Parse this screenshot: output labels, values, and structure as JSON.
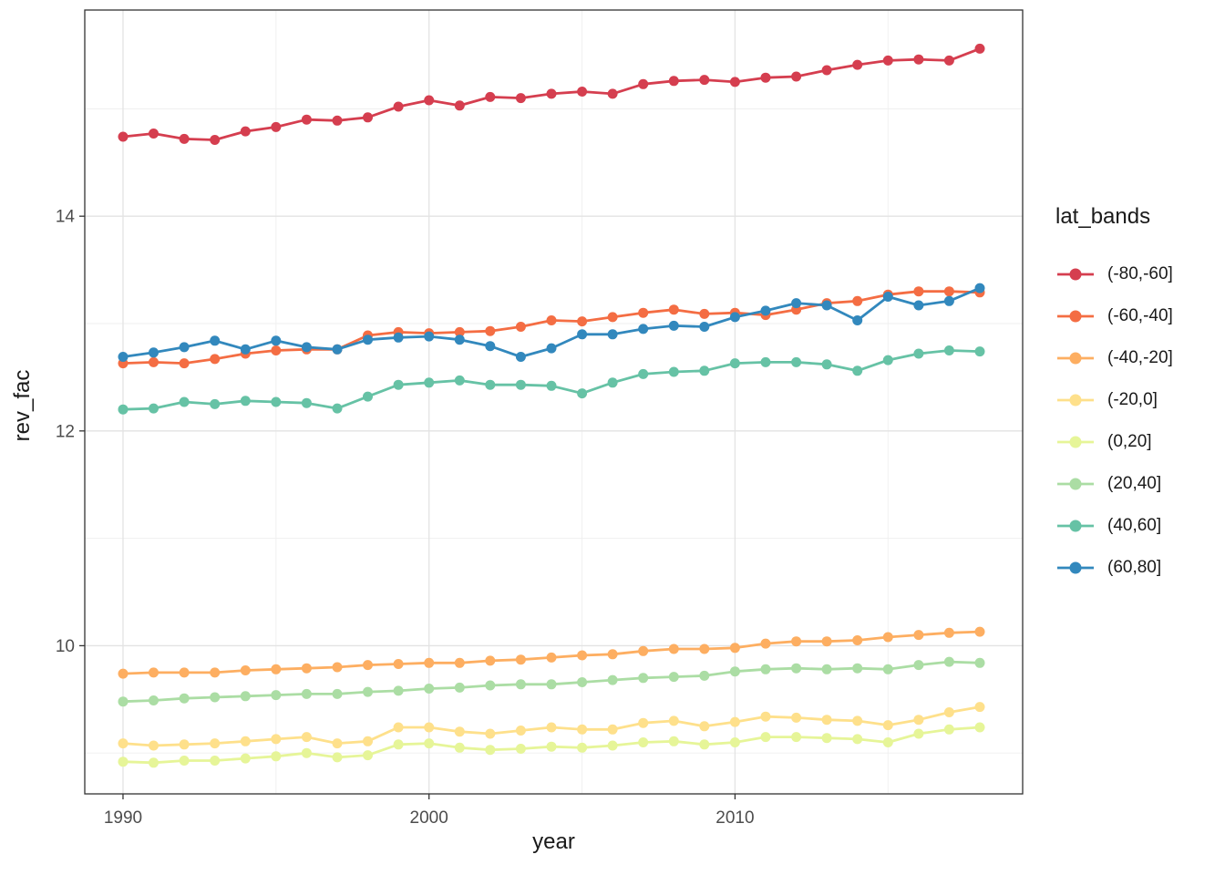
{
  "figure": {
    "background": "#ffffff"
  },
  "chart_data": {
    "type": "line",
    "title": "",
    "xlabel": "year",
    "ylabel": "rev_fac",
    "legend_title": "lat_bands",
    "legend_position": "right",
    "grid": true,
    "marker": "circle",
    "x": [
      1990,
      1991,
      1992,
      1993,
      1994,
      1995,
      1996,
      1997,
      1998,
      1999,
      2000,
      2001,
      2002,
      2003,
      2004,
      2005,
      2006,
      2007,
      2008,
      2009,
      2010,
      2011,
      2012,
      2013,
      2014,
      2015,
      2016,
      2017,
      2018
    ],
    "x_ticks": [
      1990,
      2000,
      2010
    ],
    "x_minor_ticks": [
      1995,
      2005,
      2015
    ],
    "y_ticks": [
      10,
      12,
      14
    ],
    "y_minor_ticks": [
      9,
      11,
      13,
      15
    ],
    "x_domain": [
      1988.75,
      2019.4
    ],
    "y_domain": [
      8.62,
      15.92
    ],
    "series": [
      {
        "name": "(-80,-60]",
        "color": "#d53e4f",
        "values": [
          14.74,
          14.77,
          14.72,
          14.71,
          14.79,
          14.83,
          14.9,
          14.89,
          14.92,
          15.02,
          15.08,
          15.03,
          15.11,
          15.1,
          15.14,
          15.16,
          15.14,
          15.23,
          15.26,
          15.27,
          15.25,
          15.29,
          15.3,
          15.36,
          15.41,
          15.45,
          15.46,
          15.45,
          15.56
        ]
      },
      {
        "name": "(-60,-40]",
        "color": "#f46d43",
        "values": [
          12.63,
          12.64,
          12.63,
          12.67,
          12.72,
          12.75,
          12.76,
          12.76,
          12.89,
          12.92,
          12.91,
          12.92,
          12.93,
          12.97,
          13.03,
          13.02,
          13.06,
          13.1,
          13.13,
          13.09,
          13.1,
          13.08,
          13.13,
          13.19,
          13.21,
          13.27,
          13.3,
          13.3,
          13.29
        ]
      },
      {
        "name": "(-40,-20]",
        "color": "#fdae61",
        "values": [
          9.74,
          9.75,
          9.75,
          9.75,
          9.77,
          9.78,
          9.79,
          9.8,
          9.82,
          9.83,
          9.84,
          9.84,
          9.86,
          9.87,
          9.89,
          9.91,
          9.92,
          9.95,
          9.97,
          9.97,
          9.98,
          10.02,
          10.04,
          10.04,
          10.05,
          10.08,
          10.1,
          10.12,
          10.13
        ]
      },
      {
        "name": "(-20,0]",
        "color": "#fee08b",
        "values": [
          9.09,
          9.07,
          9.08,
          9.09,
          9.11,
          9.13,
          9.15,
          9.09,
          9.11,
          9.24,
          9.24,
          9.2,
          9.18,
          9.21,
          9.24,
          9.22,
          9.22,
          9.28,
          9.3,
          9.25,
          9.29,
          9.34,
          9.33,
          9.31,
          9.3,
          9.26,
          9.31,
          9.38,
          9.43
        ]
      },
      {
        "name": "(0,20]",
        "color": "#e6f598",
        "values": [
          8.92,
          8.91,
          8.93,
          8.93,
          8.95,
          8.97,
          9.0,
          8.96,
          8.98,
          9.08,
          9.09,
          9.05,
          9.03,
          9.04,
          9.06,
          9.05,
          9.07,
          9.1,
          9.11,
          9.08,
          9.1,
          9.15,
          9.15,
          9.14,
          9.13,
          9.1,
          9.18,
          9.22,
          9.24
        ]
      },
      {
        "name": "(20,40]",
        "color": "#abdda4",
        "values": [
          9.48,
          9.49,
          9.51,
          9.52,
          9.53,
          9.54,
          9.55,
          9.55,
          9.57,
          9.58,
          9.6,
          9.61,
          9.63,
          9.64,
          9.64,
          9.66,
          9.68,
          9.7,
          9.71,
          9.72,
          9.76,
          9.78,
          9.79,
          9.78,
          9.79,
          9.78,
          9.82,
          9.85,
          9.84
        ]
      },
      {
        "name": "(40,60]",
        "color": "#66c2a5",
        "values": [
          12.2,
          12.21,
          12.27,
          12.25,
          12.28,
          12.27,
          12.26,
          12.21,
          12.32,
          12.43,
          12.45,
          12.47,
          12.43,
          12.43,
          12.42,
          12.35,
          12.45,
          12.53,
          12.55,
          12.56,
          12.63,
          12.64,
          12.64,
          12.62,
          12.56,
          12.66,
          12.72,
          12.75,
          12.74
        ]
      },
      {
        "name": "(60,80]",
        "color": "#3288bd",
        "values": [
          12.69,
          12.73,
          12.78,
          12.84,
          12.76,
          12.84,
          12.78,
          12.76,
          12.85,
          12.87,
          12.88,
          12.85,
          12.79,
          12.69,
          12.77,
          12.9,
          12.9,
          12.95,
          12.98,
          12.97,
          13.06,
          13.12,
          13.19,
          13.17,
          13.03,
          13.25,
          13.17,
          13.21,
          13.33
        ]
      }
    ]
  },
  "axes_style": {
    "tick_label_color": "#4d4d4d",
    "title_color": "#1a1a1a",
    "panel_border_color": "#333333",
    "grid_major_color": "#e3e3e3",
    "grid_minor_color": "#efefef",
    "tick_mark_color": "#333333"
  }
}
